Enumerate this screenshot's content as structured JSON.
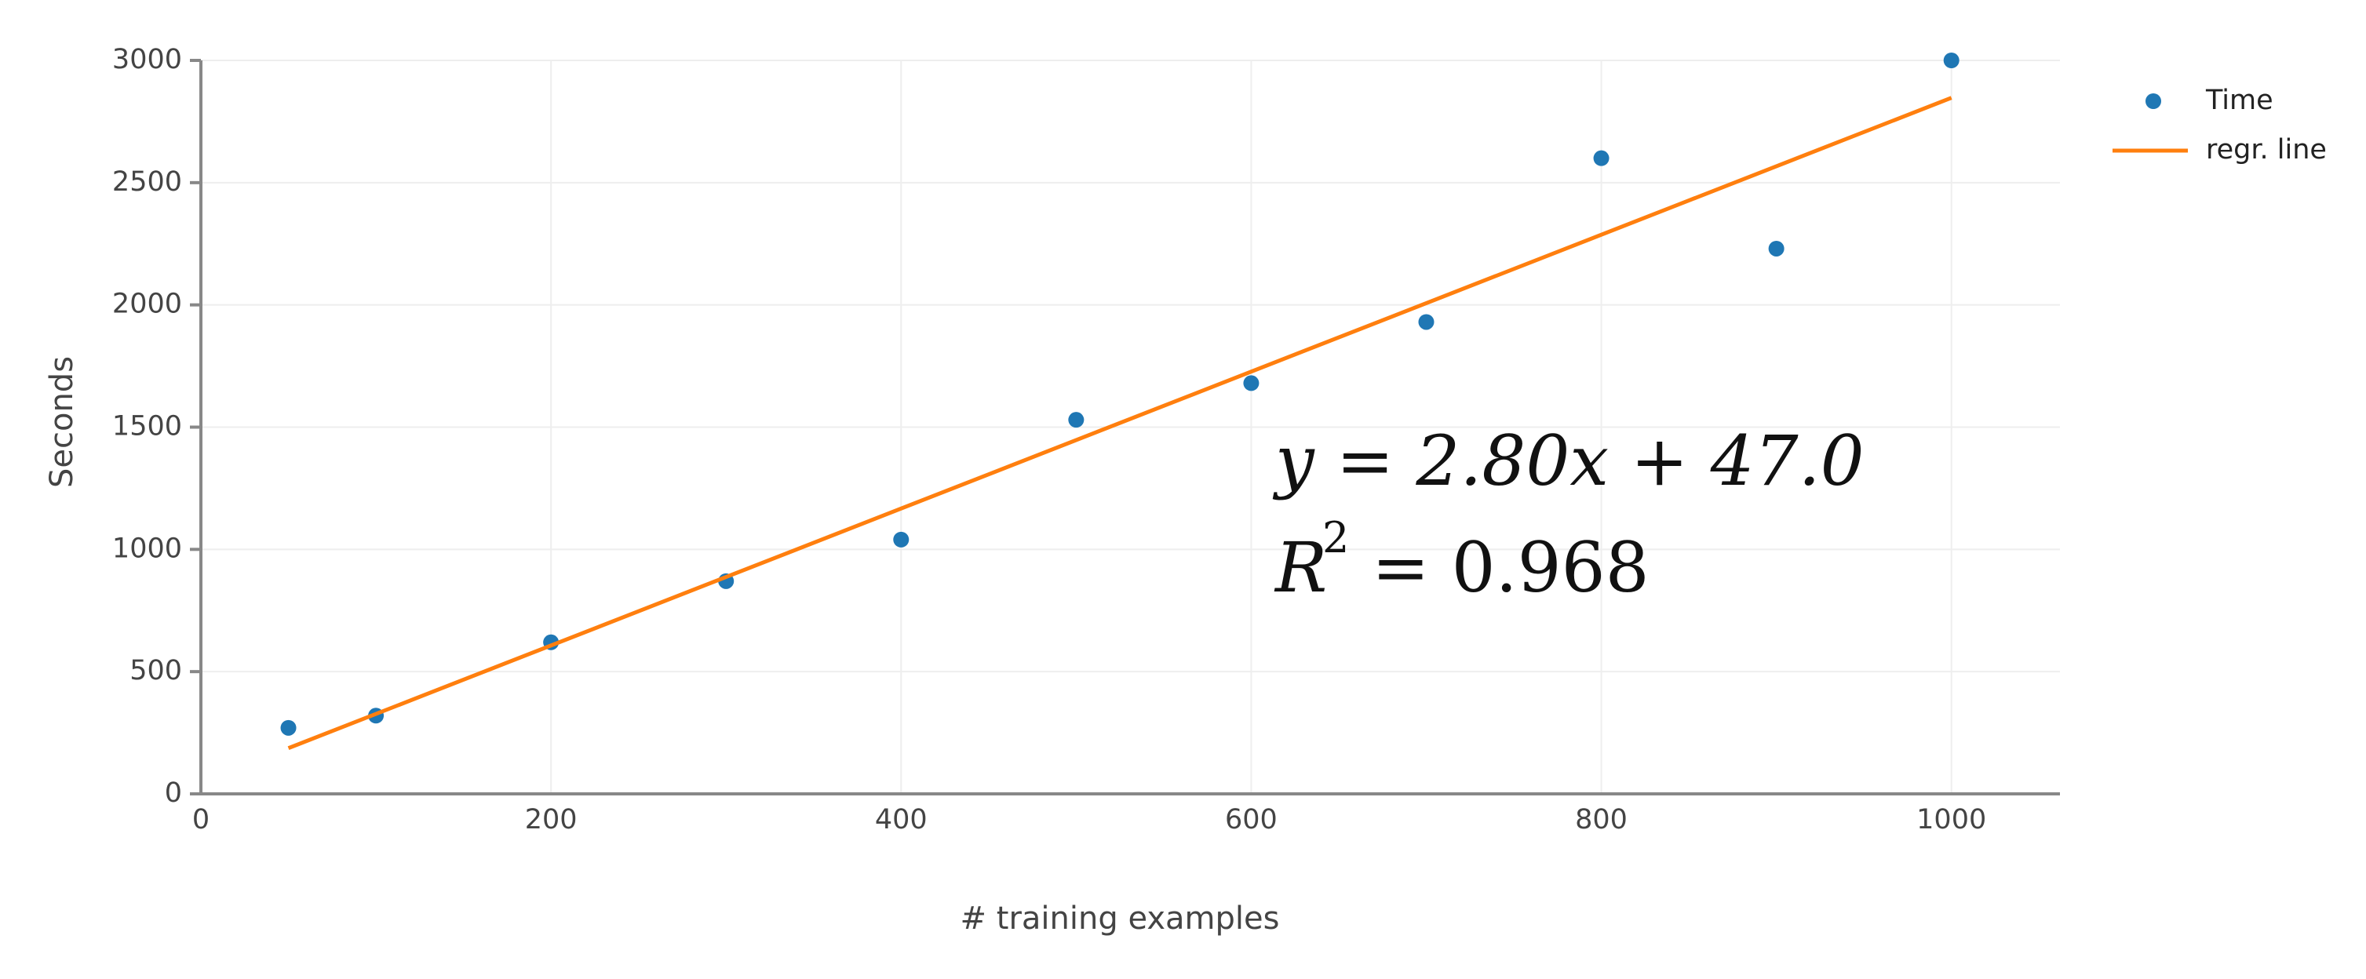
{
  "chart_data": {
    "type": "scatter",
    "x_label": "# training examples",
    "y_label": "Seconds",
    "annotations": [
      "y = 2.80x + 47.0",
      "R",
      "2",
      " = 0.968"
    ],
    "xlim": [
      0,
      1062
    ],
    "xticks": [
      0,
      200,
      400,
      600,
      800,
      1000
    ],
    "ylim": [
      0,
      3000
    ],
    "yticks": [
      0,
      500,
      1000,
      1500,
      2000,
      2500,
      3000
    ],
    "grid": true,
    "series": [
      {
        "name": "Time",
        "type": "scatter",
        "color": "#1f77b4",
        "x": [
          50,
          100,
          200,
          300,
          400,
          500,
          600,
          700,
          800,
          900,
          1000
        ],
        "values": [
          270,
          320,
          620,
          870,
          1040,
          1530,
          1680,
          1930,
          2600,
          2230,
          3000
        ]
      },
      {
        "name": "regr. line",
        "type": "line",
        "color": "#ff7f0e",
        "x": [
          50,
          1000
        ],
        "values": [
          187,
          2847
        ]
      }
    ]
  }
}
